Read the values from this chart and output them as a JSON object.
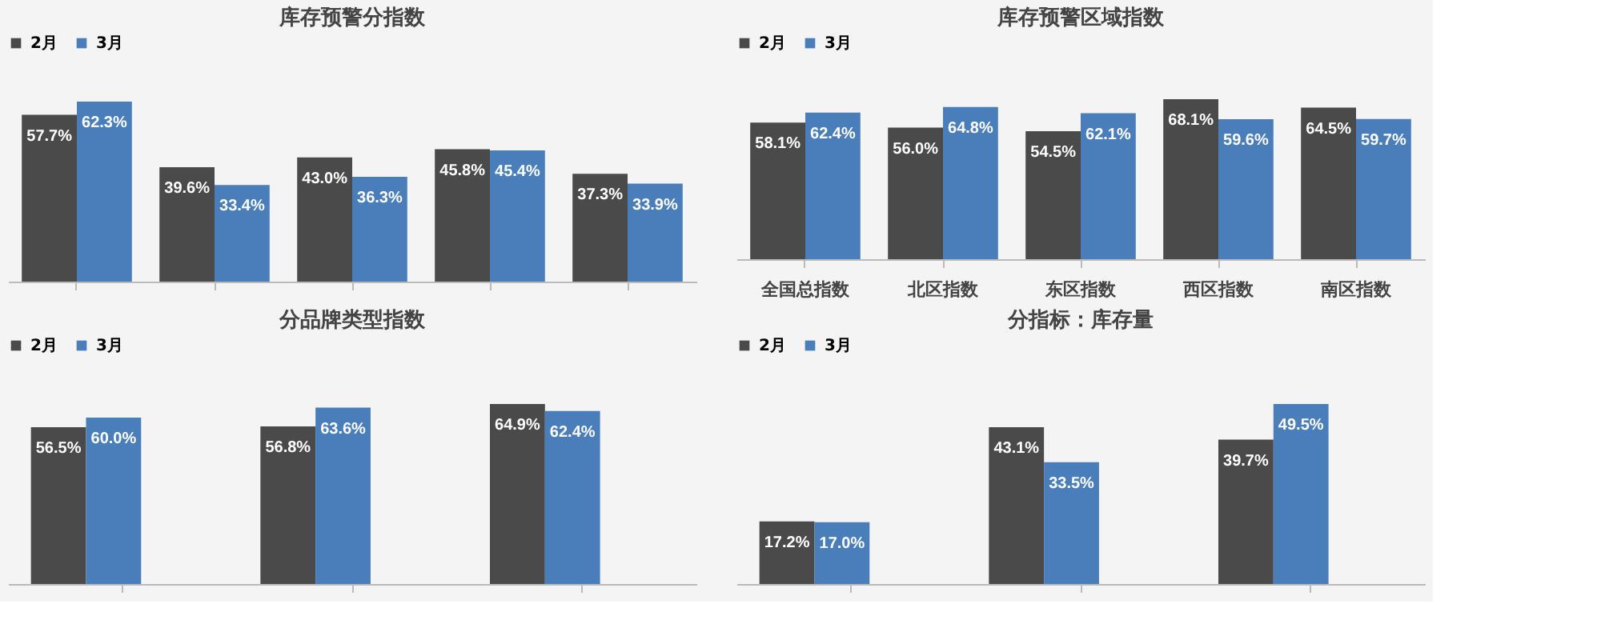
{
  "chart_data": [
    {
      "type": "bar",
      "title": "库存预警分指数",
      "categories": [
        null,
        null,
        null,
        null,
        null
      ],
      "legend": "top",
      "tick_labels": false,
      "series": [
        {
          "name": "2月",
          "color": "#4a4a4a",
          "values": [
            57.7,
            39.6,
            43.0,
            45.8,
            37.3
          ],
          "value_labels": [
            "57.7%",
            "39.6%",
            "43.0%",
            "45.8%",
            "37.3%"
          ]
        },
        {
          "name": "3月",
          "color": "#4a7ebb",
          "values": [
            62.3,
            33.4,
            36.3,
            45.4,
            33.9
          ],
          "value_labels": [
            "62.3%",
            "33.4%",
            "36.3%",
            "45.4%",
            "33.9%"
          ]
        }
      ]
    },
    {
      "type": "bar",
      "title": "库存预警区域指数",
      "categories": [
        "全国总指数",
        "北区指数",
        "东区指数",
        "西区指数",
        "南区指数"
      ],
      "legend": "top",
      "tick_labels": "x",
      "series": [
        {
          "name": "2月",
          "color": "#4a4a4a",
          "values": [
            58.1,
            56.0,
            54.5,
            68.1,
            64.5
          ],
          "value_labels": [
            "58.1%",
            "56.0%",
            "54.5%",
            "68.1%",
            "64.5%"
          ]
        },
        {
          "name": "3月",
          "color": "#4a7ebb",
          "values": [
            62.4,
            64.8,
            62.1,
            59.6,
            59.7
          ],
          "value_labels": [
            "62.4%",
            "64.8%",
            "62.1%",
            "59.6%",
            "59.7%"
          ]
        }
      ]
    },
    {
      "type": "bar",
      "title": "分品牌类型指数",
      "categories": [
        null,
        null,
        null
      ],
      "legend": "top",
      "tick_labels": false,
      "series": [
        {
          "name": "2月",
          "color": "#4a4a4a",
          "values": [
            56.5,
            56.8,
            64.9
          ],
          "value_labels": [
            "56.5%",
            "56.8%",
            "64.9%"
          ]
        },
        {
          "name": "3月",
          "color": "#4a7ebb",
          "values": [
            60.0,
            63.6,
            62.4
          ],
          "value_labels": [
            "60.0%",
            "63.6%",
            "62.4%"
          ]
        }
      ]
    },
    {
      "type": "bar",
      "title": "分指标：库存量",
      "categories": [
        null,
        null,
        null
      ],
      "legend": "top",
      "tick_labels": false,
      "series": [
        {
          "name": "2月",
          "color": "#4a4a4a",
          "values": [
            17.2,
            43.1,
            39.7
          ],
          "value_labels": [
            "17.2%",
            "43.1%",
            "39.7%"
          ]
        },
        {
          "name": "3月",
          "color": "#4a7ebb",
          "values": [
            17.0,
            33.5,
            49.5
          ],
          "value_labels": [
            "17.0%",
            "33.5%",
            "49.5%"
          ]
        }
      ]
    }
  ]
}
